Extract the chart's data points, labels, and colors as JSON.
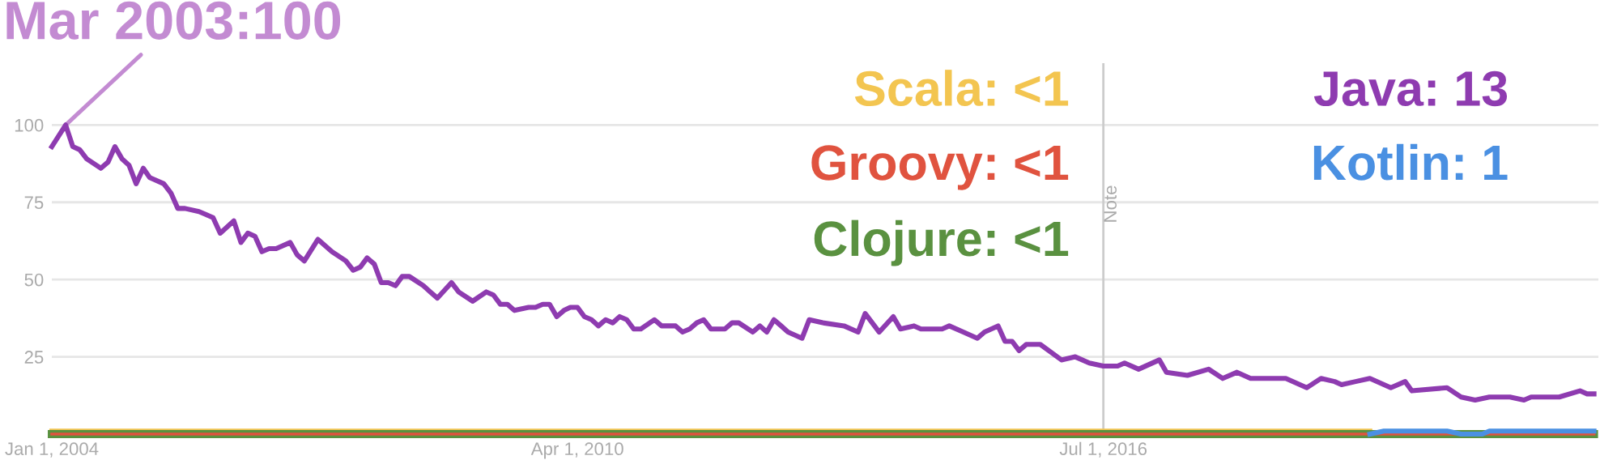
{
  "chart_data": {
    "type": "line",
    "xlim": [
      "2004-01-01",
      "2022-05-20"
    ],
    "ylim": [
      0,
      120
    ],
    "yticks": [
      25,
      50,
      75,
      100
    ],
    "xticks": [
      {
        "value": "2004-01-01",
        "label": "Jan 1, 2004"
      },
      {
        "value": "2010-04-01",
        "label": "Apr 1, 2010"
      },
      {
        "value": "2016-07-01",
        "label": "Jul 1, 2016"
      }
    ],
    "grid": "y",
    "annotations": [
      {
        "text": "Mar 2003:100",
        "x": "2004-03",
        "y": 100
      }
    ],
    "ref_lines": [
      {
        "axis": "x",
        "value": "2016-07-01",
        "label": "Note",
        "color": "#cccccc"
      }
    ],
    "series": [
      {
        "name": "Scala: <1",
        "color": "#f3c550",
        "x": [
          "2004-01",
          "2019-09"
        ],
        "values": [
          1,
          1
        ]
      },
      {
        "name": "Groovy: <1",
        "color": "#e0533f",
        "x": [
          "2004-01",
          "2022-05"
        ],
        "values": [
          0,
          0
        ]
      },
      {
        "name": "Clojure: <1",
        "color": "#5a9140",
        "x": [
          "2004-01",
          "2022-05"
        ],
        "values": [
          0,
          0
        ]
      },
      {
        "name": "Kotlin: 1",
        "color": "#4a90e2",
        "x": [
          "2019-09",
          "2019-11",
          "2020-08",
          "2020-10",
          "2021-01",
          "2021-02",
          "2022-05"
        ],
        "values": [
          0,
          1,
          1,
          0,
          0,
          1,
          1
        ]
      },
      {
        "name": "Java: 13",
        "color": "#8e3bb0",
        "x": [
          "2004-01",
          "2004-03",
          "2004-04",
          "2004-05",
          "2004-06",
          "2004-08",
          "2004-09",
          "2004-10",
          "2004-11",
          "2004-12",
          "2005-01",
          "2005-02",
          "2005-03",
          "2005-05",
          "2005-06",
          "2005-07",
          "2005-08",
          "2005-10",
          "2005-11",
          "2005-12",
          "2006-01",
          "2006-03",
          "2006-04",
          "2006-05",
          "2006-06",
          "2006-07",
          "2006-08",
          "2006-09",
          "2006-11",
          "2006-12",
          "2007-01",
          "2007-03",
          "2007-05",
          "2007-07",
          "2007-08",
          "2007-09",
          "2007-10",
          "2007-11",
          "2007-12",
          "2008-01",
          "2008-02",
          "2008-03",
          "2008-04",
          "2008-06",
          "2008-07",
          "2008-08",
          "2008-10",
          "2008-11",
          "2009-01",
          "2009-03",
          "2009-04",
          "2009-05",
          "2009-06",
          "2009-07",
          "2009-09",
          "2009-10",
          "2009-11",
          "2009-12",
          "2010-01",
          "2010-02",
          "2010-03",
          "2010-04",
          "2010-05",
          "2010-06",
          "2010-07",
          "2010-08",
          "2010-09",
          "2010-10",
          "2010-11",
          "2010-12",
          "2011-01",
          "2011-03",
          "2011-04",
          "2011-06",
          "2011-07",
          "2011-08",
          "2011-09",
          "2011-10",
          "2011-11",
          "2012-01",
          "2012-02",
          "2012-03",
          "2012-05",
          "2012-06",
          "2012-07",
          "2012-08",
          "2012-09",
          "2012-10",
          "2012-12",
          "2013-01",
          "2013-03",
          "2013-06",
          "2013-08",
          "2013-09",
          "2013-11",
          "2014-01",
          "2014-02",
          "2014-04",
          "2014-05",
          "2014-08",
          "2014-09",
          "2014-11",
          "2015-01",
          "2015-02",
          "2015-04",
          "2015-05",
          "2015-06",
          "2015-07",
          "2015-08",
          "2015-10",
          "2016-01",
          "2016-03",
          "2016-05",
          "2016-07",
          "2016-09",
          "2016-10",
          "2016-12",
          "2017-03",
          "2017-04",
          "2017-07",
          "2017-10",
          "2017-12",
          "2018-02",
          "2018-04",
          "2018-07",
          "2018-09",
          "2018-12",
          "2019-02",
          "2019-04",
          "2019-05",
          "2019-07",
          "2019-09",
          "2019-12",
          "2020-02",
          "2020-03",
          "2020-08",
          "2020-10",
          "2020-12",
          "2021-02",
          "2021-04",
          "2021-05",
          "2021-07",
          "2021-08",
          "2021-12",
          "2022-03",
          "2022-04",
          "2022-05"
        ],
        "values": [
          93,
          100,
          93,
          92,
          89,
          86,
          88,
          93,
          89,
          87,
          81,
          86,
          83,
          81,
          78,
          73,
          73,
          72,
          71,
          70,
          65,
          69,
          62,
          65,
          64,
          59,
          60,
          60,
          62,
          58,
          56,
          63,
          59,
          56,
          53,
          54,
          57,
          55,
          49,
          49,
          48,
          51,
          51,
          48,
          46,
          44,
          49,
          46,
          43,
          46,
          45,
          42,
          42,
          40,
          41,
          41,
          42,
          42,
          38,
          40,
          41,
          41,
          38,
          37,
          35,
          37,
          36,
          38,
          37,
          34,
          34,
          37,
          35,
          35,
          33,
          34,
          36,
          37,
          34,
          34,
          36,
          36,
          33,
          35,
          33,
          37,
          35,
          33,
          31,
          37,
          36,
          35,
          33,
          39,
          33,
          38,
          34,
          35,
          34,
          34,
          35,
          33,
          31,
          33,
          35,
          30,
          30,
          27,
          29,
          29,
          24,
          25,
          23,
          22,
          22,
          23,
          21,
          24,
          20,
          19,
          21,
          18,
          20,
          18,
          18,
          18,
          15,
          18,
          17,
          16,
          17,
          18,
          15,
          17,
          14,
          15,
          12,
          11,
          12,
          12,
          12,
          11,
          12,
          12,
          14,
          13,
          13
        ]
      }
    ]
  }
}
